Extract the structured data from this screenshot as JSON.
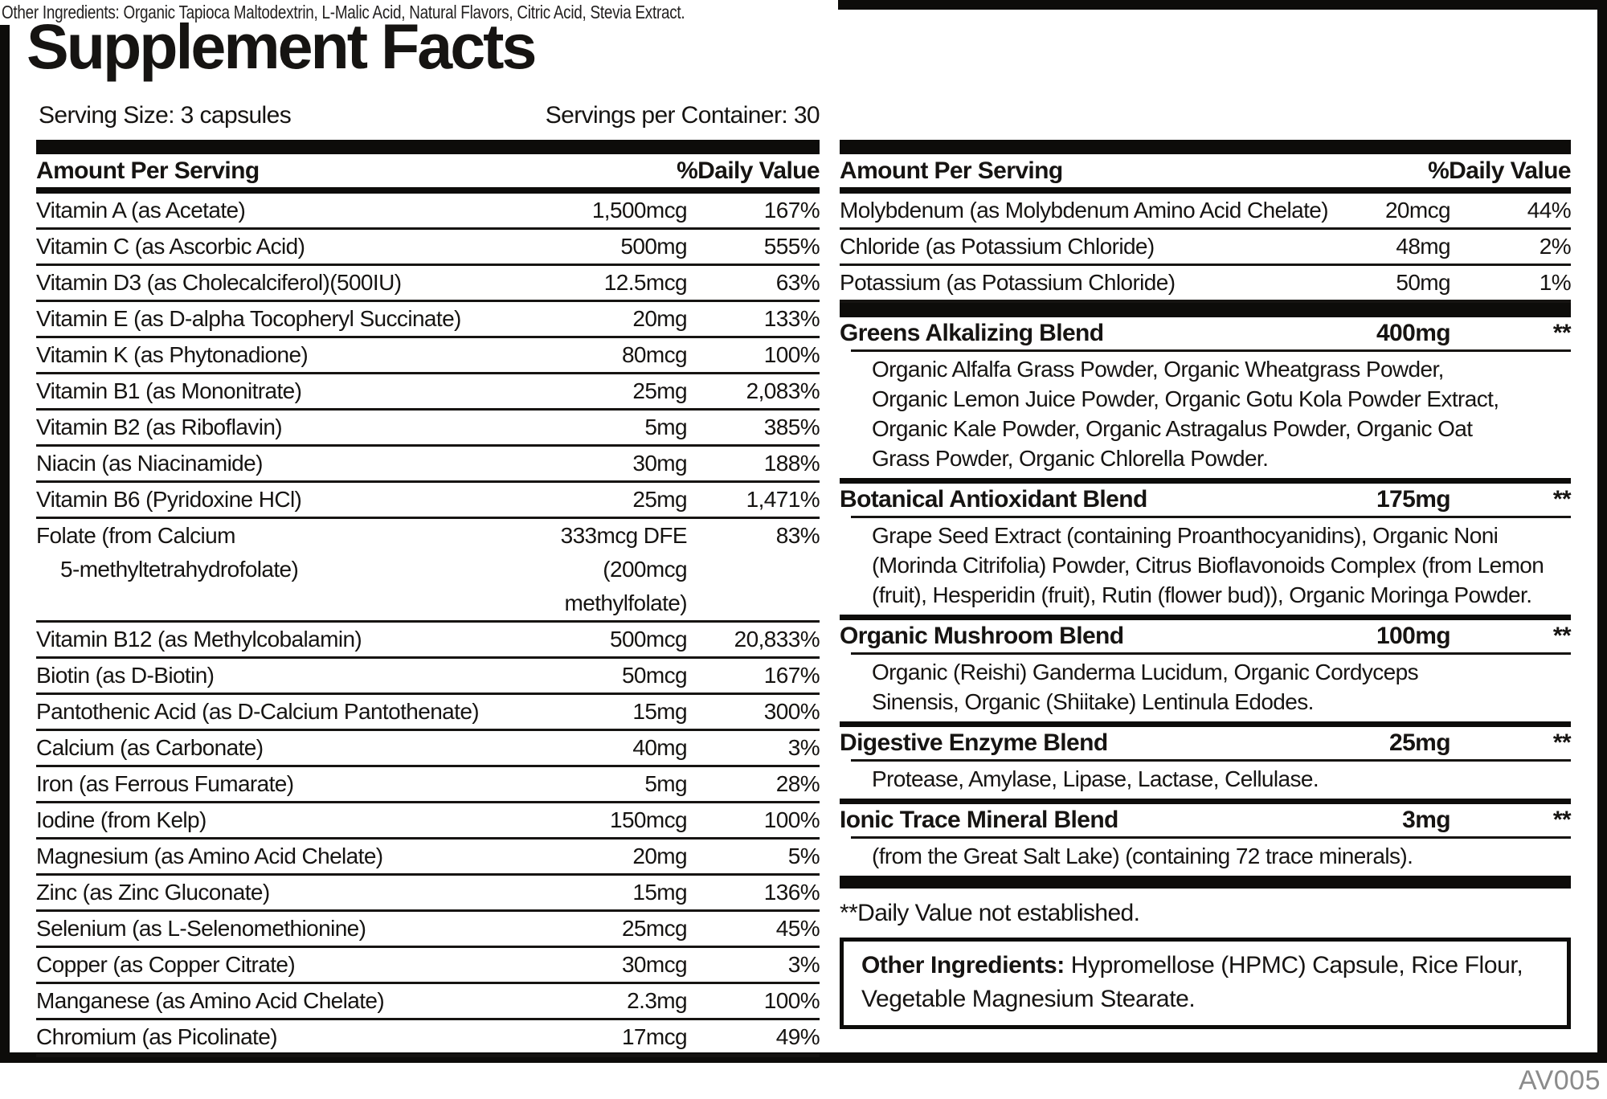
{
  "title": "Supplement Facts",
  "serving": {
    "size": "Serving Size: 3 capsules",
    "per_container": "Servings per Container: 30"
  },
  "columns": {
    "amount_header": "Amount Per Serving",
    "dv_header": "%Daily Value"
  },
  "left_rows": [
    {
      "name": "Vitamin A (as Acetate)",
      "amount": "1,500mcg",
      "dv": "167%"
    },
    {
      "name": "Vitamin C (as Ascorbic Acid)",
      "amount": "500mg",
      "dv": "555%"
    },
    {
      "name": "Vitamin D3 (as Cholecalciferol)(500IU)",
      "amount": "12.5mcg",
      "dv": "63%"
    },
    {
      "name": "Vitamin E (as D-alpha Tocopheryl Succinate)",
      "amount": "20mg",
      "dv": "133%"
    },
    {
      "name": "Vitamin K (as Phytonadione)",
      "amount": "80mcg",
      "dv": "100%"
    },
    {
      "name": "Vitamin B1 (as Mononitrate)",
      "amount": "25mg",
      "dv": "2,083%"
    },
    {
      "name": "Vitamin B2 (as Riboflavin)",
      "amount": "5mg",
      "dv": "385%"
    },
    {
      "name": "Niacin (as Niacinamide)",
      "amount": "30mg",
      "dv": "188%"
    },
    {
      "name": "Vitamin B6 (Pyridoxine HCl)",
      "amount": "25mg",
      "dv": "1,471%"
    },
    {
      "name": "Folate (from Calcium",
      "name2": "5-methyltetrahydrofolate)",
      "amount": "333mcg DFE",
      "amount2": "(200mcg methylfolate)",
      "dv": "83%"
    },
    {
      "name": "Vitamin B12 (as Methylcobalamin)",
      "amount": "500mcg",
      "dv": "20,833%"
    },
    {
      "name": "Biotin (as D-Biotin)",
      "amount": "50mcg",
      "dv": "167%"
    },
    {
      "name": "Pantothenic Acid (as D-Calcium Pantothenate)",
      "amount": "15mg",
      "dv": "300%"
    },
    {
      "name": "Calcium (as Carbonate)",
      "amount": "40mg",
      "dv": "3%"
    },
    {
      "name": "Iron (as Ferrous Fumarate)",
      "amount": "5mg",
      "dv": "28%"
    },
    {
      "name": "Iodine (from Kelp)",
      "amount": "150mcg",
      "dv": "100%"
    },
    {
      "name": "Magnesium (as Amino Acid Chelate)",
      "amount": "20mg",
      "dv": "5%"
    },
    {
      "name": "Zinc (as Zinc Gluconate)",
      "amount": "15mg",
      "dv": "136%"
    },
    {
      "name": "Selenium (as L-Selenomethionine)",
      "amount": "25mcg",
      "dv": "45%"
    },
    {
      "name": "Copper (as Copper Citrate)",
      "amount": "30mcg",
      "dv": "3%"
    },
    {
      "name": "Manganese (as Amino Acid Chelate)",
      "amount": "2.3mg",
      "dv": "100%"
    },
    {
      "name": "Chromium (as Picolinate)",
      "amount": "17mcg",
      "dv": "49%"
    }
  ],
  "right_rows": [
    {
      "name": "Molybdenum (as Molybdenum Amino Acid Chelate)",
      "amount": "20mcg",
      "dv": "44%"
    },
    {
      "name": "Chloride (as Potassium Chloride)",
      "amount": "48mg",
      "dv": "2%"
    },
    {
      "name": "Potassium (as Potassium Chloride)",
      "amount": "50mg",
      "dv": "1%"
    }
  ],
  "blends": [
    {
      "label": "Greens Alkalizing Blend",
      "amount": "400mg",
      "dv": "**",
      "ingredients": "Organic Alfalfa Grass Powder, Organic Wheatgrass Powder,\nOrganic Lemon Juice Powder, Organic Gotu Kola Powder Extract,\nOrganic Kale Powder, Organic Astragalus Powder, Organic Oat\nGrass Powder, Organic Chlorella Powder."
    },
    {
      "label": "Botanical Antioxidant Blend",
      "amount": "175mg",
      "dv": "**",
      "ingredients": "Grape Seed Extract (containing Proanthocyanidins), Organic Noni\n(Morinda Citrifolia) Powder, Citrus Bioflavonoids Complex (from Lemon\n(fruit), Hesperidin (fruit), Rutin (flower bud)), Organic Moringa Powder."
    },
    {
      "label": "Organic Mushroom Blend",
      "amount": "100mg",
      "dv": "**",
      "ingredients": "Organic (Reishi) Ganderma Lucidum, Organic Cordyceps\nSinensis, Organic (Shiitake) Lentinula Edodes."
    },
    {
      "label": "Digestive Enzyme Blend",
      "amount": "25mg",
      "dv": "**",
      "ingredients": "Protease, Amylase, Lipase, Lactase, Cellulase."
    },
    {
      "label": "Ionic Trace Mineral Blend",
      "amount": "3mg",
      "dv": "**",
      "ingredients": "(from the Great Salt Lake) (containing 72 trace minerals)."
    }
  ],
  "dv_note": "**Daily Value not established.",
  "other_ingredients_box": {
    "label": "Other Ingredients:",
    "text": " Hypromellose (HPMC) Capsule, Rice Flour,\nVegetable Magnesium Stearate."
  },
  "overlay_strikethrough": "Other Ingredients: Organic Tapioca Maltodextrin, L-Malic Acid, Natural Flavors, Citric Acid, Stevia Extract.",
  "footer_code": "AV005",
  "colors": {
    "ink": "#161412",
    "bar": "#0d0c0a",
    "muted_gray": "#8b8b8b"
  }
}
